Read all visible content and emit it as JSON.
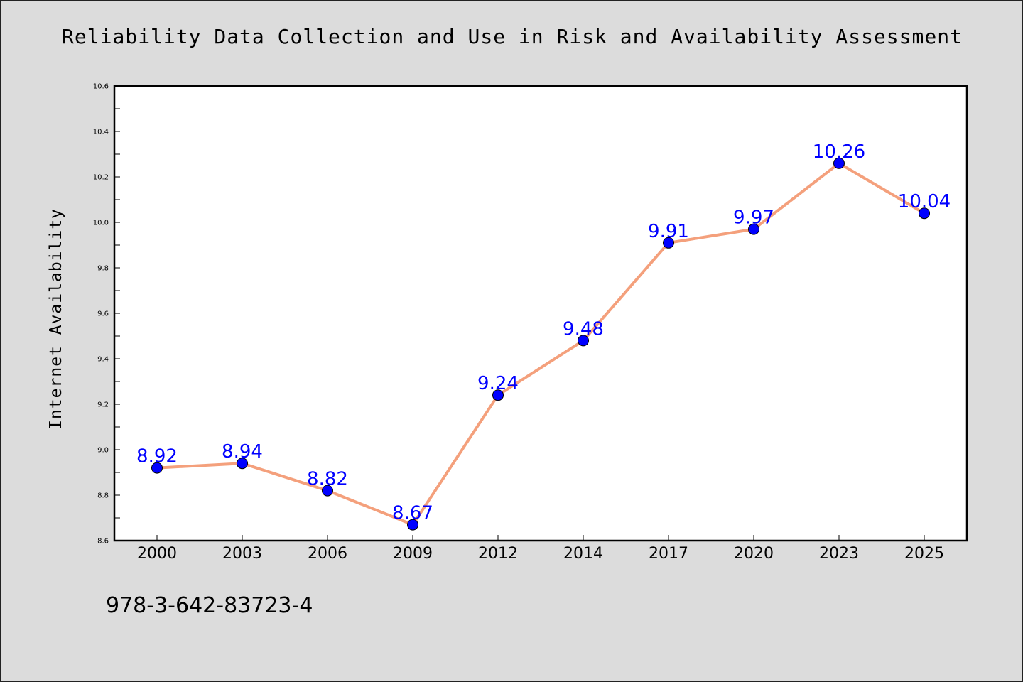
{
  "chart_data": {
    "type": "line",
    "title": "Reliability Data Collection and Use in Risk and Availability Assessment",
    "xlabel": "",
    "ylabel": "Internet Availability",
    "categories": [
      "2000",
      "2003",
      "2006",
      "2009",
      "2012",
      "2014",
      "2017",
      "2020",
      "2023",
      "2025"
    ],
    "values": [
      8.92,
      8.94,
      8.82,
      8.67,
      9.24,
      9.48,
      9.91,
      9.97,
      10.26,
      10.04
    ],
    "data_labels": [
      "8.92",
      "8.94",
      "8.82",
      "8.67",
      "9.24",
      "9.48",
      "9.91",
      "9.97",
      "10.26",
      "10.04"
    ],
    "ylim": [
      8.6,
      10.6
    ],
    "yticks": [
      "8.6",
      "8.8",
      "9.0",
      "9.2",
      "9.4",
      "9.6",
      "9.8",
      "10.0",
      "10.2",
      "10.4",
      "10.6"
    ],
    "grid": false,
    "legend": "none",
    "colors": {
      "line": "#f4a07c",
      "marker": "#0000ff",
      "data_label": "#0000ff",
      "background": "#dcdcdc",
      "plot_background": "#ffffff"
    }
  },
  "footer": {
    "isbn": "978-3-642-83723-4"
  }
}
